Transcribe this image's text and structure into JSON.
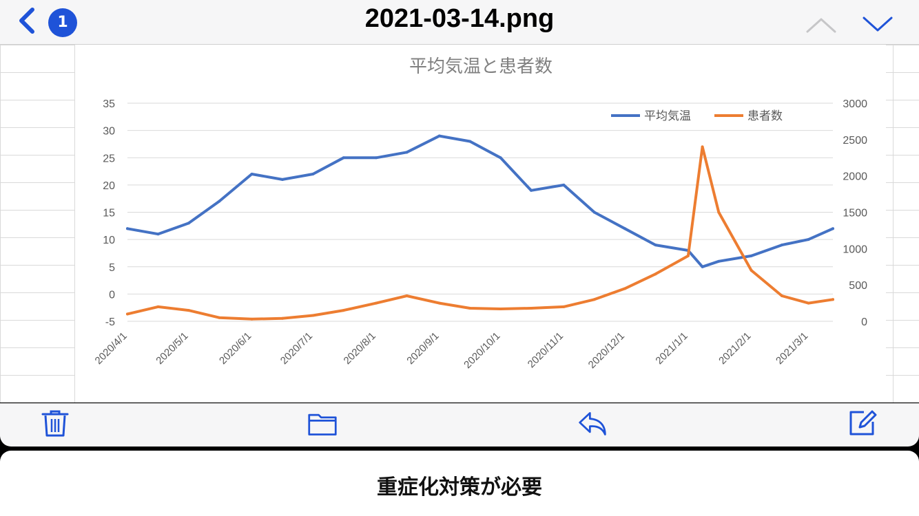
{
  "header": {
    "title": "2021-03-14.png",
    "badge_count": "1"
  },
  "caption": "重症化対策が必要",
  "colors": {
    "accent": "#1f53d8",
    "temp_series": "#4472c4",
    "patients_series": "#ed7d31",
    "chart_title": "#808080"
  },
  "icons": {
    "back": "chevron-left-icon",
    "prev": "chevron-up-icon",
    "next": "chevron-down-icon",
    "delete": "trash-icon",
    "folder": "folder-icon",
    "reply": "reply-icon",
    "edit": "compose-icon"
  },
  "chart_data": {
    "type": "line",
    "title": "平均気温と患者数",
    "legend_position": "top-right",
    "grid": true,
    "x_tick_labels": [
      "2020/4/1",
      "2020/5/1",
      "2020/6/1",
      "2020/7/1",
      "2020/8/1",
      "2020/9/1",
      "2020/10/1",
      "2020/11/1",
      "2020/12/1",
      "2021/1/1",
      "2021/2/1",
      "2021/3/1"
    ],
    "y_left_ticks": [
      "35",
      "30",
      "25",
      "20",
      "15",
      "10",
      "5",
      "0",
      "-5"
    ],
    "y_right_ticks": [
      "3000",
      "2500",
      "2000",
      "1500",
      "1000",
      "500",
      "0"
    ],
    "y_left_range": [
      -5,
      35
    ],
    "y_right_range": [
      0,
      3000
    ],
    "series": [
      {
        "name": "平均気温",
        "axis": "left",
        "x": [
          "2020-04-01",
          "2020-04-16",
          "2020-05-01",
          "2020-05-16",
          "2020-06-01",
          "2020-06-16",
          "2020-07-01",
          "2020-07-16",
          "2020-08-01",
          "2020-08-16",
          "2020-09-01",
          "2020-09-16",
          "2020-10-01",
          "2020-10-16",
          "2020-11-01",
          "2020-11-16",
          "2020-12-01",
          "2020-12-16",
          "2021-01-01",
          "2021-01-08",
          "2021-01-16",
          "2021-02-01",
          "2021-02-16",
          "2021-03-01",
          "2021-03-13"
        ],
        "values": [
          12,
          11,
          13,
          17,
          22,
          21,
          22,
          25,
          25,
          26,
          29,
          28,
          25,
          19,
          20,
          15,
          12,
          9,
          8,
          5,
          6,
          7,
          9,
          10,
          12
        ]
      },
      {
        "name": "患者数",
        "axis": "right",
        "x": [
          "2020-04-01",
          "2020-04-16",
          "2020-05-01",
          "2020-05-16",
          "2020-06-01",
          "2020-06-16",
          "2020-07-01",
          "2020-07-16",
          "2020-08-01",
          "2020-08-16",
          "2020-09-01",
          "2020-09-16",
          "2020-10-01",
          "2020-10-16",
          "2020-11-01",
          "2020-11-16",
          "2020-12-01",
          "2020-12-16",
          "2021-01-01",
          "2021-01-08",
          "2021-01-16",
          "2021-02-01",
          "2021-02-16",
          "2021-03-01",
          "2021-03-13"
        ],
        "values": [
          100,
          200,
          150,
          50,
          30,
          40,
          80,
          150,
          250,
          350,
          250,
          180,
          170,
          180,
          200,
          300,
          450,
          650,
          900,
          2400,
          1500,
          700,
          350,
          250,
          300
        ]
      }
    ]
  }
}
